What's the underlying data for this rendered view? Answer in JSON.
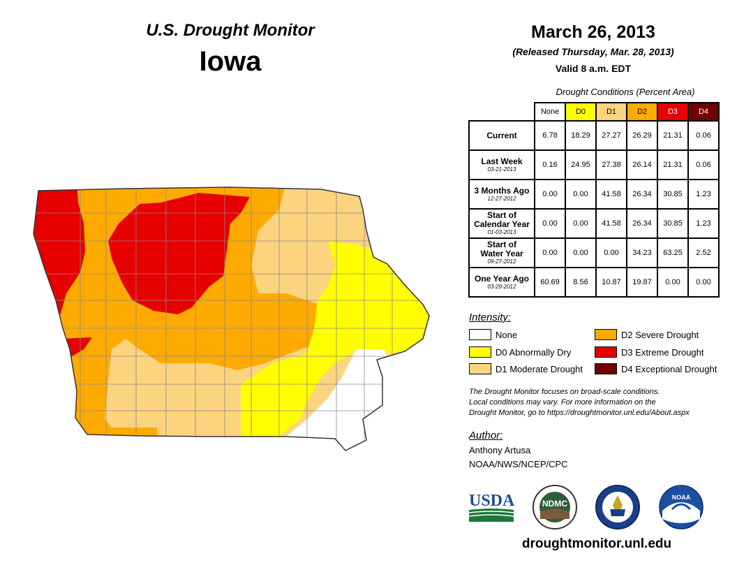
{
  "header": {
    "subtitle": "U.S. Drought Monitor",
    "state": "Iowa",
    "date": "March 26, 2013",
    "released": "(Released Thursday, Mar. 28, 2013)",
    "valid": "Valid 8 a.m. EDT"
  },
  "table": {
    "caption": "Drought Conditions (Percent Area)",
    "columns": [
      "None",
      "D0",
      "D1",
      "D2",
      "D3",
      "D4"
    ],
    "column_colors": [
      "#ffffff",
      "#ffff00",
      "#fcd37f",
      "#ffaa00",
      "#e60000",
      "#730000"
    ],
    "rows": [
      {
        "line1": "Current",
        "line2": "",
        "date": "",
        "values": [
          "6.78",
          "18.29",
          "27.27",
          "26.29",
          "21.31",
          "0.06"
        ]
      },
      {
        "line1": "Last Week",
        "line2": "",
        "date": "03-21-2013",
        "values": [
          "0.16",
          "24.95",
          "27.38",
          "26.14",
          "21.31",
          "0.06"
        ]
      },
      {
        "line1": "3 Months Ago",
        "line2": "",
        "date": "12-27-2012",
        "values": [
          "0.00",
          "0.00",
          "41.58",
          "26.34",
          "30.85",
          "1.23"
        ]
      },
      {
        "line1": "Start of",
        "line2": "Calendar Year",
        "date": "01-03-2013",
        "values": [
          "0.00",
          "0.00",
          "41.58",
          "26.34",
          "30.85",
          "1.23"
        ]
      },
      {
        "line1": "Start of",
        "line2": "Water Year",
        "date": "09-27-2012",
        "values": [
          "0.00",
          "0.00",
          "0.00",
          "34.23",
          "63.25",
          "2.52"
        ]
      },
      {
        "line1": "One Year Ago",
        "line2": "",
        "date": "03-29-2012",
        "values": [
          "60.69",
          "8.56",
          "10.87",
          "19.87",
          "0.00",
          "0.00"
        ]
      }
    ]
  },
  "legend": {
    "title": "Intensity:",
    "items": [
      {
        "label": "None",
        "color": "#ffffff"
      },
      {
        "label": "D0 Abnormally Dry",
        "color": "#ffff00"
      },
      {
        "label": "D1 Moderate Drought",
        "color": "#fcd37f"
      },
      {
        "label": "D2 Severe Drought",
        "color": "#ffaa00"
      },
      {
        "label": "D3 Extreme Drought",
        "color": "#e60000"
      },
      {
        "label": "D4 Exceptional Drought",
        "color": "#730000"
      }
    ]
  },
  "note": {
    "line1": "The Drought Monitor focuses on broad-scale conditions.",
    "line2": "Local conditions may vary. For more information on the",
    "line3": "Drought Monitor, go to https://droughtmonitor.unl.edu/About.aspx"
  },
  "author": {
    "title": "Author:",
    "name": "Anthony Artusa",
    "org": "NOAA/NWS/NCEP/CPC"
  },
  "logos": {
    "usda": "USDA",
    "ndmc": "NDMC",
    "noaa": "NOAA",
    "usda_color": "#1e4d8c",
    "ndmc_color": "#2e5d3a",
    "commerce_color": "#1a3f8a",
    "noaa_color": "#1b4fa0"
  },
  "footer": {
    "url": "droughtmonitor.unl.edu"
  }
}
